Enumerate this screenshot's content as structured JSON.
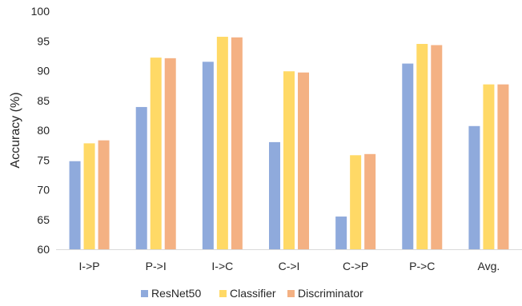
{
  "chart_data": {
    "type": "bar",
    "title": "",
    "xlabel": "",
    "ylabel": "Accuracy (%)",
    "ylim": [
      60,
      100
    ],
    "yticks": [
      60,
      65,
      70,
      75,
      80,
      85,
      90,
      95,
      100
    ],
    "grid": false,
    "legend_position": "bottom",
    "categories": [
      "I->P",
      "P->I",
      "I->C",
      "C->I",
      "C->P",
      "P->C",
      "Avg."
    ],
    "series": [
      {
        "name": "ResNet50",
        "color": "#8faadc",
        "values": [
          74.8,
          83.9,
          91.5,
          78.0,
          65.5,
          91.2,
          80.7
        ]
      },
      {
        "name": "Classifier",
        "color": "#ffd966",
        "values": [
          77.8,
          92.2,
          95.7,
          89.9,
          75.8,
          94.5,
          87.7
        ]
      },
      {
        "name": "Discriminator",
        "color": "#f4b183",
        "values": [
          78.3,
          92.1,
          95.6,
          89.7,
          76.0,
          94.3,
          87.7
        ]
      }
    ]
  }
}
